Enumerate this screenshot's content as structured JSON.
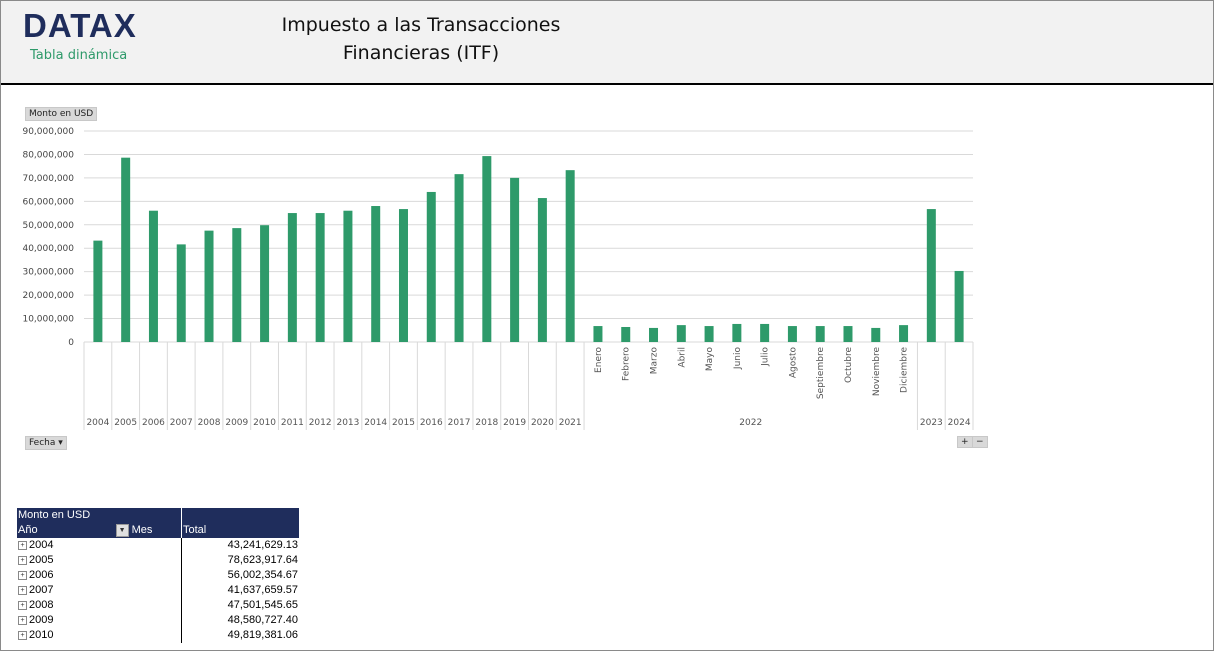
{
  "header": {
    "logo": "DATAX",
    "logo_subtitle": "Tabla dinámica",
    "title_line1": "Impuesto a las Transacciones",
    "title_line2": "Financieras (ITF)"
  },
  "chart_controls": {
    "value_field": "Monto en USD",
    "axis_field": "Fecha",
    "expand": "+",
    "collapse": "−"
  },
  "chart_data": {
    "type": "bar",
    "color": "#2e9a6a",
    "ylim": [
      0,
      90000000
    ],
    "grid": true,
    "yticks": [
      "0",
      "10,000,000",
      "20,000,000",
      "30,000,000",
      "40,000,000",
      "50,000,000",
      "60,000,000",
      "70,000,000",
      "80,000,000",
      "90,000,000"
    ],
    "categories": [
      {
        "label": "2004"
      },
      {
        "label": "2005"
      },
      {
        "label": "2006"
      },
      {
        "label": "2007"
      },
      {
        "label": "2008"
      },
      {
        "label": "2009"
      },
      {
        "label": "2010"
      },
      {
        "label": "2011"
      },
      {
        "label": "2012"
      },
      {
        "label": "2013"
      },
      {
        "label": "2014"
      },
      {
        "label": "2015"
      },
      {
        "label": "2016"
      },
      {
        "label": "2017"
      },
      {
        "label": "2018"
      },
      {
        "label": "2019"
      },
      {
        "label": "2020"
      },
      {
        "label": "2021"
      },
      {
        "label": "Enero",
        "group": "2022"
      },
      {
        "label": "Febrero",
        "group": "2022"
      },
      {
        "label": "Marzo",
        "group": "2022"
      },
      {
        "label": "Abril",
        "group": "2022"
      },
      {
        "label": "Mayo",
        "group": "2022"
      },
      {
        "label": "Junio",
        "group": "2022"
      },
      {
        "label": "Julio",
        "group": "2022"
      },
      {
        "label": "Agosto",
        "group": "2022"
      },
      {
        "label": "Septiembre",
        "group": "2022"
      },
      {
        "label": "Octubre",
        "group": "2022"
      },
      {
        "label": "Noviembre",
        "group": "2022"
      },
      {
        "label": "Diciembre",
        "group": "2022"
      },
      {
        "label": "2023"
      },
      {
        "label": "2024"
      }
    ],
    "values": [
      43241629.13,
      78623917.64,
      56002354.67,
      41637659.57,
      47501545.65,
      48580727.4,
      49819381.06,
      55000000,
      55000000,
      56000000,
      58000000,
      56700000,
      64000000,
      71600000,
      79300000,
      70000000,
      61400000,
      73300000,
      6800000,
      6400000,
      6000000,
      7200000,
      6800000,
      7700000,
      7700000,
      6800000,
      6800000,
      6800000,
      6000000,
      7200000,
      56700000,
      30300000
    ]
  },
  "pivot": {
    "title": "Monto en USD",
    "col_row": "Año",
    "col_sub": "Mes",
    "col_total": "Total",
    "rows": [
      {
        "year": "2004",
        "total": "43,241,629.13"
      },
      {
        "year": "2005",
        "total": "78,623,917.64"
      },
      {
        "year": "2006",
        "total": "56,002,354.67"
      },
      {
        "year": "2007",
        "total": "41,637,659.57"
      },
      {
        "year": "2008",
        "total": "47,501,545.65"
      },
      {
        "year": "2009",
        "total": "48,580,727.40"
      },
      {
        "year": "2010",
        "total": "49,819,381.06"
      }
    ]
  }
}
